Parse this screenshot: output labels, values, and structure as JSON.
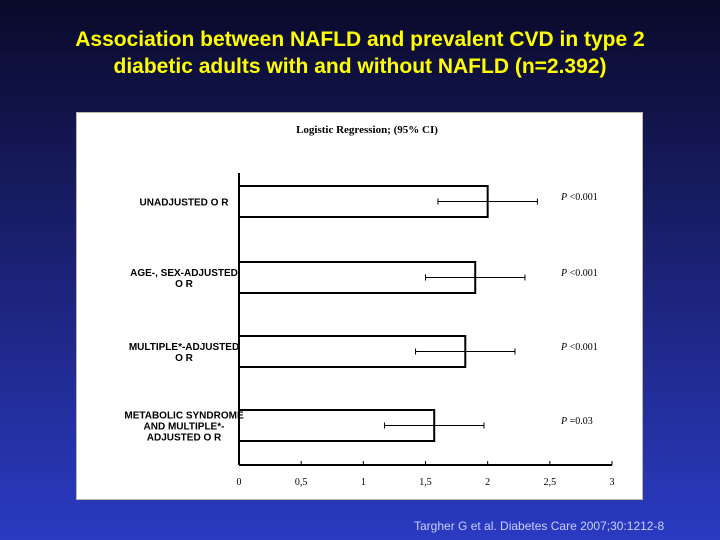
{
  "slide": {
    "title_line1": "Association between NAFLD and prevalent CVD in type 2",
    "title_line2": "diabetic adults with and without NAFLD (n=2.392)",
    "citation": "Targher G et al. Diabetes Care 2007;30:1212-8"
  },
  "chart_data": {
    "type": "bar",
    "orientation": "horizontal",
    "title": "Logistic Regression; (95% CI)",
    "categories": [
      [
        "UNADJUSTED O R"
      ],
      [
        "AGE-, SEX-ADJUSTED",
        "O R"
      ],
      [
        "MULTIPLE*-ADJUSTED",
        "O R"
      ],
      [
        "METABOLIC SYNDROME",
        "AND MULTIPLE*-",
        "ADJUSTED O R"
      ]
    ],
    "values": [
      2.0,
      1.9,
      1.82,
      1.57
    ],
    "ci_lower": [
      1.6,
      1.5,
      1.42,
      1.17
    ],
    "ci_upper": [
      2.4,
      2.3,
      2.22,
      1.97
    ],
    "p_values": [
      {
        "prefix": "P",
        "text": " <0.001"
      },
      {
        "prefix": "P",
        "text": " <0.001"
      },
      {
        "prefix": "P",
        "text": " <0.001"
      },
      {
        "prefix": "P",
        "text": " =0.03"
      }
    ],
    "xlim": [
      0,
      3
    ],
    "x_ticks": [
      0,
      0.5,
      1,
      1.5,
      2,
      2.5,
      3
    ],
    "x_tick_labels": [
      "0",
      "0,5",
      "1",
      "1,5",
      "2",
      "2,5",
      "3"
    ],
    "grid": false,
    "colors": {
      "bar_fill": "#ffffff",
      "bar_stroke": "#000000",
      "text": "#000000"
    }
  }
}
